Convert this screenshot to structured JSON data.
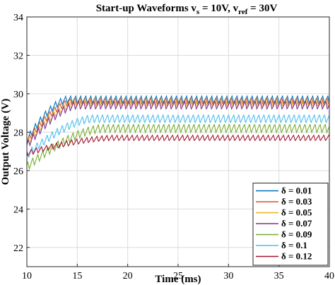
{
  "chart_data": {
    "type": "line",
    "title": {
      "prefix": "Start-up Waveforms v",
      "sub1": "s",
      "mid": " = 10V, v",
      "sub2": "ref",
      "suffix": " = 30V"
    },
    "xlabel": "Time (ms)",
    "ylabel": "Output Voltage (V)",
    "xlim": [
      10,
      40
    ],
    "ylim": [
      21,
      34
    ],
    "xticks": [
      10,
      15,
      20,
      25,
      30,
      35,
      40
    ],
    "yticks": [
      22,
      24,
      26,
      28,
      30,
      32,
      34
    ],
    "grid": true,
    "legend_position": "bottom-right",
    "ripple_period_ms": 0.5,
    "series": [
      {
        "name": "δ = 0.01",
        "color": "#0072BD",
        "start": 27.6,
        "rise_end": 14.0,
        "steady": 29.7,
        "ripple": 0.35
      },
      {
        "name": "δ = 0.03",
        "color": "#D95319",
        "start": 27.5,
        "rise_end": 14.5,
        "steady": 29.6,
        "ripple": 0.35
      },
      {
        "name": "δ = 0.05",
        "color": "#EDB120",
        "start": 27.4,
        "rise_end": 15.0,
        "steady": 29.5,
        "ripple": 0.35
      },
      {
        "name": "δ = 0.07",
        "color": "#7E2F8E",
        "start": 27.3,
        "rise_end": 15.0,
        "steady": 29.4,
        "ripple": 0.4
      },
      {
        "name": "δ = 0.09",
        "color": "#77AC30",
        "start": 26.2,
        "rise_end": 17.5,
        "steady": 28.2,
        "ripple": 0.45
      },
      {
        "name": "δ = 0.1",
        "color": "#4DBEEE",
        "start": 26.8,
        "rise_end": 16.5,
        "steady": 28.7,
        "ripple": 0.45
      },
      {
        "name": "δ = 0.12",
        "color": "#A2142F",
        "start": 26.9,
        "rise_end": 18.5,
        "steady": 27.7,
        "ripple": 0.3
      }
    ]
  }
}
